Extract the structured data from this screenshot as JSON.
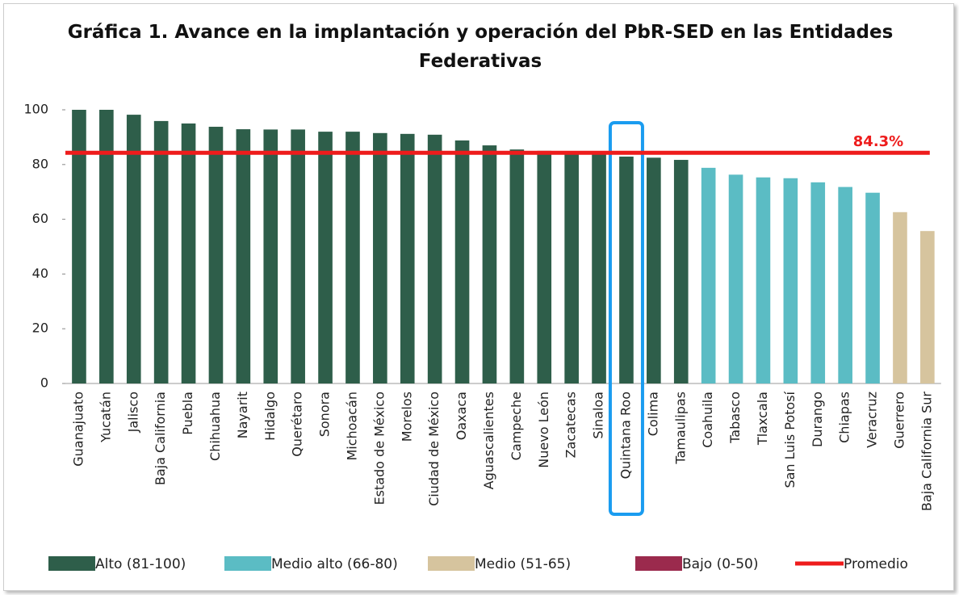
{
  "chart_data": {
    "type": "bar",
    "title": "Gráfica 1. Avance en la implantación y operación del PbR-SED en las Entidades Federativas",
    "categories": [
      "Guanajuato",
      "Yucatán",
      "Jalisco",
      "Baja California",
      "Puebla",
      "Chihuahua",
      "Nayarit",
      "Hidalgo",
      "Querétaro",
      "Sonora",
      "Michoacán",
      "Estado de México",
      "Morelos",
      "Ciudad de México",
      "Oaxaca",
      "Aguascalientes",
      "Campeche",
      "Nuevo León",
      "Zacatecas",
      "Sinaloa",
      "Quintana Roo",
      "Colima",
      "Tamaulipas",
      "Coahuila",
      "Tabasco",
      "Tlaxcala",
      "San Luis Potosí",
      "Durango",
      "Chiapas",
      "Veracruz",
      "Guerrero",
      "Baja California Sur"
    ],
    "series": [
      {
        "name": "Alto (81-100)",
        "color": "#2e5e4a",
        "values": [
          100,
          100,
          98.2,
          95.9,
          95,
          93.8,
          92.9,
          92.8,
          92.8,
          92,
          92,
          91.5,
          91.2,
          90.9,
          88.8,
          87,
          85.5,
          85,
          84.5,
          84,
          82.9,
          82.5,
          81.7,
          null,
          null,
          null,
          null,
          null,
          null,
          null,
          null,
          null
        ]
      },
      {
        "name": "Medio  alto (66-80)",
        "color": "#5bbcc4",
        "values": [
          null,
          null,
          null,
          null,
          null,
          null,
          null,
          null,
          null,
          null,
          null,
          null,
          null,
          null,
          null,
          null,
          null,
          null,
          null,
          null,
          null,
          null,
          null,
          78.8,
          76.3,
          75.3,
          75,
          73.5,
          71.8,
          69.7,
          null,
          null
        ]
      },
      {
        "name": "Medio (51-65)",
        "color": "#d6c49e",
        "values": [
          null,
          null,
          null,
          null,
          null,
          null,
          null,
          null,
          null,
          null,
          null,
          null,
          null,
          null,
          null,
          null,
          null,
          null,
          null,
          null,
          null,
          null,
          null,
          null,
          null,
          null,
          null,
          null,
          null,
          null,
          62.6,
          55.7
        ]
      },
      {
        "name": "Bajo (0-50)",
        "color": "#9b2a4d",
        "values": [
          null,
          null,
          null,
          null,
          null,
          null,
          null,
          null,
          null,
          null,
          null,
          null,
          null,
          null,
          null,
          null,
          null,
          null,
          null,
          null,
          null,
          null,
          null,
          null,
          null,
          null,
          null,
          null,
          null,
          null,
          null,
          null
        ]
      }
    ],
    "reference_line": {
      "name": "Promedio",
      "value": 84.3,
      "value_label": "84.3%",
      "color": "#ee1c1c"
    },
    "highlight": "Quintana Roo",
    "ylim": [
      0,
      100
    ],
    "yticks": [
      0,
      20,
      40,
      60,
      80,
      100
    ],
    "grid": false
  }
}
